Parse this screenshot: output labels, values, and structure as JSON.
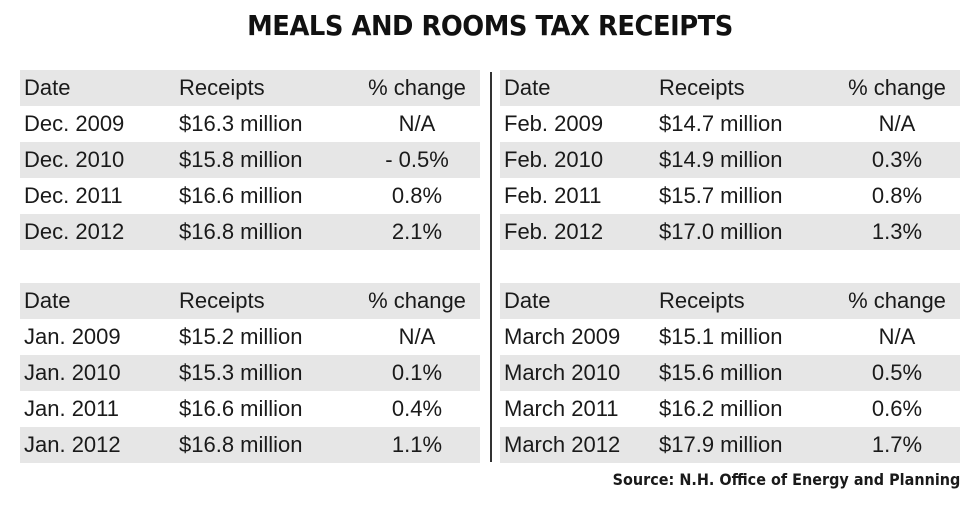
{
  "title": "MEALS AND ROOMS TAX RECEIPTS",
  "columns": {
    "date": "Date",
    "receipts": "Receipts",
    "change": "% change"
  },
  "tables": [
    {
      "rows": [
        {
          "date": "Dec. 2009",
          "receipts": "$16.3 million",
          "change": "N/A"
        },
        {
          "date": "Dec. 2010",
          "receipts": "$15.8 million",
          "change": "- 0.5%"
        },
        {
          "date": "Dec. 2011",
          "receipts": "$16.6 million",
          "change": "0.8%"
        },
        {
          "date": "Dec. 2012",
          "receipts": "$16.8 million",
          "change": "2.1%"
        }
      ]
    },
    {
      "rows": [
        {
          "date": "Feb. 2009",
          "receipts": "$14.7 million",
          "change": "N/A"
        },
        {
          "date": "Feb. 2010",
          "receipts": "$14.9 million",
          "change": "0.3%"
        },
        {
          "date": "Feb. 2011",
          "receipts": "$15.7 million",
          "change": "0.8%"
        },
        {
          "date": "Feb. 2012",
          "receipts": "$17.0 million",
          "change": "1.3%"
        }
      ]
    },
    {
      "rows": [
        {
          "date": "Jan. 2009",
          "receipts": "$15.2 million",
          "change": "N/A"
        },
        {
          "date": "Jan. 2010",
          "receipts": "$15.3 million",
          "change": "0.1%"
        },
        {
          "date": "Jan. 2011",
          "receipts": "$16.6 million",
          "change": "0.4%"
        },
        {
          "date": "Jan. 2012",
          "receipts": "$16.8 million",
          "change": "1.1%"
        }
      ]
    },
    {
      "rows": [
        {
          "date": "March 2009",
          "receipts": "$15.1 million",
          "change": "N/A"
        },
        {
          "date": "March 2010",
          "receipts": "$15.6 million",
          "change": "0.5%"
        },
        {
          "date": "March 2011",
          "receipts": "$16.2 million",
          "change": "0.6%"
        },
        {
          "date": "March 2012",
          "receipts": "$17.9 million",
          "change": "1.7%"
        }
      ]
    }
  ],
  "source": "Source: N.H. Office of Energy and Planning",
  "colors": {
    "row_shade": "#e6e6e6",
    "divider": "#333333",
    "text": "#1a1a1a"
  }
}
